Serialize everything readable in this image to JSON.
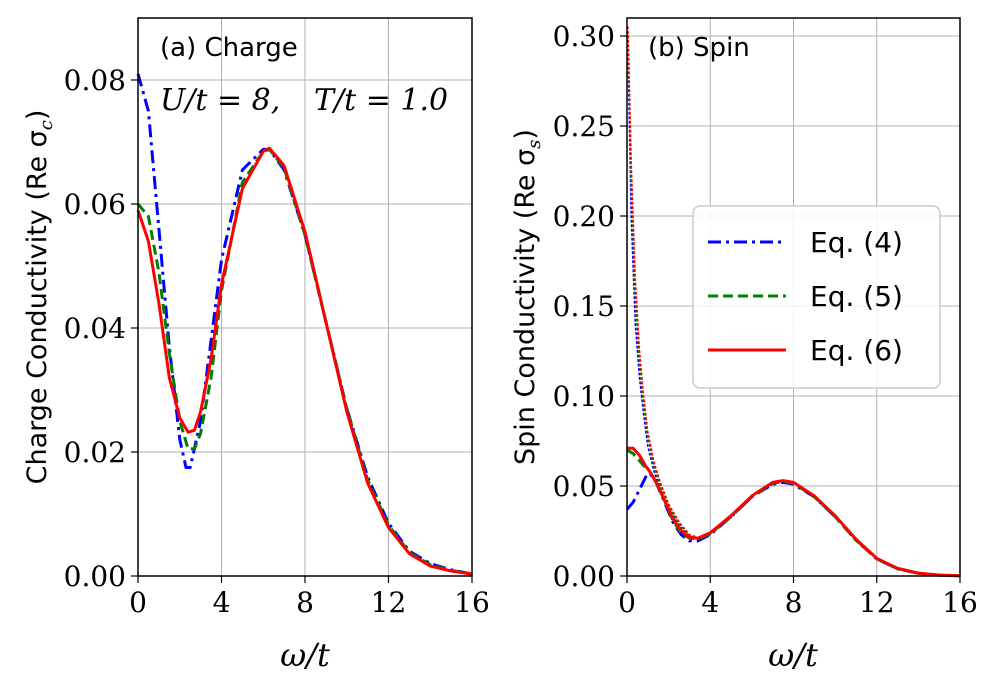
{
  "chart_data": [
    {
      "type": "line",
      "panel_label": "(a) Charge",
      "annotation_u": "U/t = 8,",
      "annotation_t": "T/t = 1.0",
      "xlabel": "ω/t",
      "ylabel": "Charge Conductivity (Re σ",
      "ylabel_sub": "c",
      "ylabel_close": ")",
      "xlim": [
        0,
        16
      ],
      "ylim": [
        0,
        0.09
      ],
      "xticks": [
        "0",
        "4",
        "8",
        "12",
        "16"
      ],
      "xtick_values": [
        0,
        4,
        8,
        12,
        16
      ],
      "yticks": [
        "0.00",
        "0.02",
        "0.04",
        "0.06",
        "0.08"
      ],
      "ytick_values": [
        0,
        0.02,
        0.04,
        0.06,
        0.08
      ],
      "grid": true,
      "series": [
        {
          "name": "Eq. (4)",
          "style": "dashdot",
          "color": "#0000ff",
          "x": [
            0,
            0.5,
            1,
            1.5,
            2,
            2.3,
            2.5,
            3,
            3.5,
            4,
            5,
            6,
            6.3,
            7,
            8,
            9,
            10,
            11,
            12,
            13,
            14,
            15,
            16
          ],
          "y": [
            0.081,
            0.075,
            0.056,
            0.037,
            0.022,
            0.0175,
            0.0175,
            0.025,
            0.038,
            0.051,
            0.0655,
            0.0688,
            0.0688,
            0.0655,
            0.055,
            0.041,
            0.027,
            0.016,
            0.0085,
            0.004,
            0.002,
            0.001,
            0.0003
          ]
        },
        {
          "name": "Eq. (5)",
          "style": "dashed",
          "color": "#008000",
          "x": [
            0,
            0.5,
            1,
            1.5,
            2,
            2.4,
            2.7,
            3,
            3.5,
            4,
            5,
            6,
            6.3,
            7,
            8,
            9,
            10,
            11,
            12,
            13,
            14,
            15,
            16
          ],
          "y": [
            0.06,
            0.058,
            0.049,
            0.036,
            0.025,
            0.0205,
            0.0205,
            0.023,
            0.032,
            0.046,
            0.0635,
            0.0685,
            0.0688,
            0.0658,
            0.055,
            0.041,
            0.027,
            0.0155,
            0.0082,
            0.0038,
            0.0018,
            0.0009,
            0.0003
          ]
        },
        {
          "name": "Eq. (6)",
          "style": "solid",
          "color": "#ff0000",
          "x": [
            0,
            0.5,
            1,
            1.5,
            2,
            2.4,
            2.7,
            3,
            3.5,
            4,
            5,
            6,
            6.3,
            7,
            8,
            9,
            10,
            11,
            12,
            13,
            14,
            15,
            16
          ],
          "y": [
            0.059,
            0.054,
            0.044,
            0.032,
            0.0255,
            0.0232,
            0.0235,
            0.0265,
            0.035,
            0.047,
            0.0625,
            0.0685,
            0.069,
            0.0662,
            0.0555,
            0.041,
            0.0265,
            0.015,
            0.0078,
            0.0036,
            0.0016,
            0.0008,
            0.0003
          ]
        }
      ]
    },
    {
      "type": "line",
      "panel_label": "(b) Spin",
      "xlabel": "ω/t",
      "ylabel": "Spin Conductivity (Re σ",
      "ylabel_sub": "s",
      "ylabel_close": ")",
      "xlim": [
        0,
        16
      ],
      "ylim": [
        0,
        0.31
      ],
      "xticks": [
        "0",
        "4",
        "8",
        "12",
        "16"
      ],
      "xtick_values": [
        0,
        4,
        8,
        12,
        16
      ],
      "yticks": [
        "0.00",
        "0.05",
        "0.10",
        "0.15",
        "0.20",
        "0.25",
        "0.30"
      ],
      "ytick_values": [
        0,
        0.05,
        0.1,
        0.15,
        0.2,
        0.25,
        0.3
      ],
      "grid": true,
      "legend_position": "center-right",
      "legend": [
        "Eq. (4)",
        "Eq. (5)",
        "Eq. (6)"
      ],
      "series": [
        {
          "name": "Eq. (4)",
          "style": "dashdot",
          "color": "#0000ff",
          "x": [
            0,
            0.3,
            0.6,
            0.9,
            1.1,
            1.4,
            1.8,
            2.2,
            2.6,
            3,
            3.4,
            4,
            5,
            6,
            7,
            7.5,
            8,
            9,
            10,
            11,
            12,
            13,
            14,
            15,
            16
          ],
          "y": [
            0.037,
            0.041,
            0.048,
            0.055,
            0.057,
            0.052,
            0.041,
            0.03,
            0.023,
            0.0195,
            0.0195,
            0.023,
            0.033,
            0.044,
            0.051,
            0.052,
            0.051,
            0.044,
            0.033,
            0.02,
            0.0095,
            0.004,
            0.0015,
            0.0005,
            0.0001
          ]
        },
        {
          "name": "Eq. (5)",
          "style": "dashed",
          "color": "#008000",
          "x": [
            0,
            0.3,
            0.6,
            0.9,
            1.1,
            1.4,
            1.8,
            2.2,
            2.6,
            3,
            3.4,
            4,
            5,
            6,
            7,
            7.5,
            8,
            9,
            10,
            11,
            12,
            13,
            14,
            15,
            16
          ],
          "y": [
            0.07,
            0.068,
            0.064,
            0.06,
            0.058,
            0.052,
            0.042,
            0.031,
            0.024,
            0.021,
            0.0205,
            0.0235,
            0.033,
            0.044,
            0.0515,
            0.0525,
            0.0515,
            0.044,
            0.033,
            0.02,
            0.0095,
            0.004,
            0.0015,
            0.0005,
            0.0001
          ]
        },
        {
          "name": "Eq. (6)",
          "style": "solid",
          "color": "#ff0000",
          "x": [
            0,
            0.3,
            0.6,
            0.9,
            1.1,
            1.4,
            1.8,
            2.2,
            2.6,
            3,
            3.4,
            4,
            5,
            6,
            7,
            7.5,
            8,
            9,
            10,
            11,
            12,
            13,
            14,
            15,
            16
          ],
          "y": [
            0.071,
            0.071,
            0.067,
            0.061,
            0.058,
            0.052,
            0.042,
            0.032,
            0.025,
            0.0215,
            0.021,
            0.024,
            0.0335,
            0.0445,
            0.052,
            0.053,
            0.052,
            0.0445,
            0.0335,
            0.0205,
            0.0098,
            0.0042,
            0.0016,
            0.0005,
            0.0001
          ]
        },
        {
          "name": "Eq. (4) dotted",
          "style": "dotted",
          "color": "#0000ff",
          "x": [
            0.05,
            0.2,
            0.4,
            0.6,
            0.8,
            1.0,
            1.3,
            1.6,
            2.0,
            2.5,
            3.0,
            3.5,
            4
          ],
          "y": [
            0.29,
            0.2,
            0.14,
            0.11,
            0.09,
            0.072,
            0.058,
            0.048,
            0.038,
            0.028,
            0.022,
            0.021,
            0.023
          ]
        },
        {
          "name": "Eq. (5) dotted",
          "style": "dotted",
          "color": "#008000",
          "x": [
            0.05,
            0.2,
            0.4,
            0.6,
            0.8,
            1.0,
            1.3,
            1.6,
            2.0,
            2.5,
            3.0,
            3.5,
            4
          ],
          "y": [
            0.3,
            0.22,
            0.155,
            0.118,
            0.095,
            0.077,
            0.061,
            0.05,
            0.039,
            0.029,
            0.022,
            0.021,
            0.023
          ]
        },
        {
          "name": "Eq. (6) dotted",
          "style": "dotted",
          "color": "#ff0000",
          "x": [
            0.05,
            0.2,
            0.4,
            0.6,
            0.8,
            1.0,
            1.3,
            1.6,
            2.0,
            2.5,
            3.0,
            3.5,
            4
          ],
          "y": [
            0.305,
            0.23,
            0.165,
            0.125,
            0.1,
            0.08,
            0.063,
            0.052,
            0.04,
            0.03,
            0.023,
            0.021,
            0.024
          ]
        }
      ]
    }
  ]
}
